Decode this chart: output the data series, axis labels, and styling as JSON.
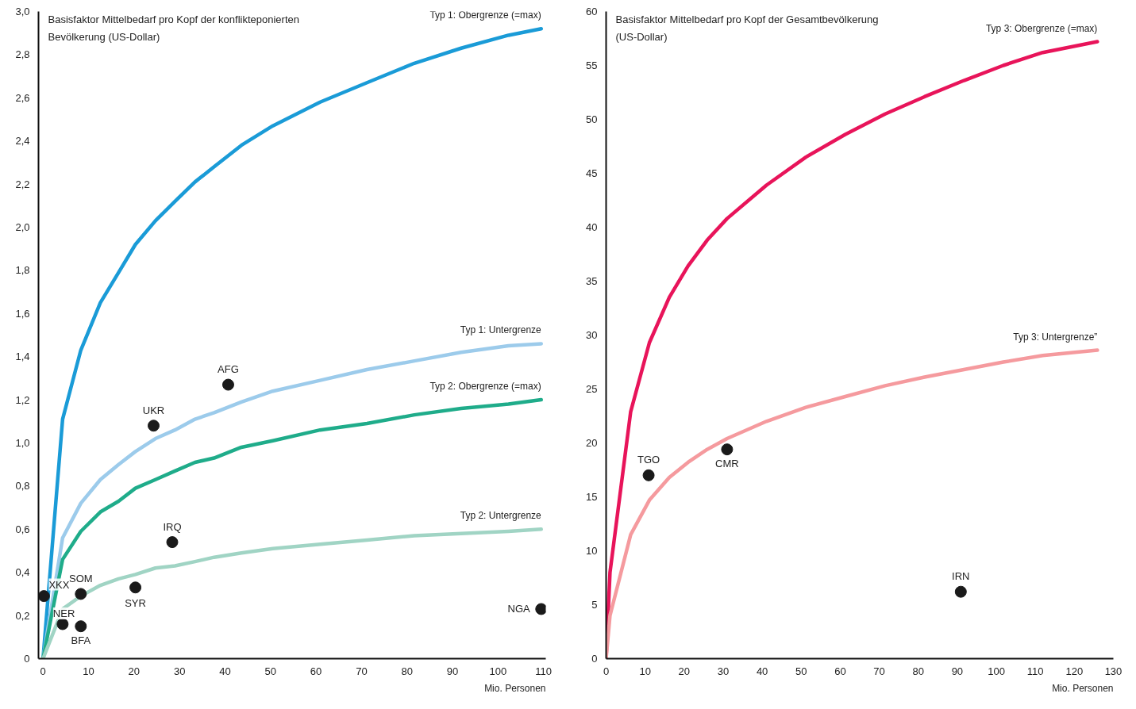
{
  "chart_data": [
    {
      "type": "line",
      "ylabel": "Basisfaktor Mittelbedarf pro Kopf der konflikteponierten Bevölkerung (US-Dollar)",
      "xlabel": "Mio. Personen",
      "xlim": [
        -1,
        110.5
      ],
      "ylim": [
        0,
        3.0
      ],
      "xticks": [
        0,
        10,
        20,
        30,
        40,
        50,
        60,
        70,
        80,
        90,
        100,
        110
      ],
      "yticks": [
        0,
        {
          "value": 0.2,
          "label": "0,2"
        },
        {
          "value": 0.4,
          "label": "0,4"
        },
        {
          "value": 0.6,
          "label": "0,6"
        },
        {
          "value": 0.8,
          "label": "0,8"
        },
        {
          "value": 1.0,
          "label": "1,0"
        },
        {
          "value": 1.2,
          "label": "1,2"
        },
        {
          "value": 1.4,
          "label": "1,4"
        },
        {
          "value": 1.6,
          "label": "1,6"
        },
        {
          "value": 1.8,
          "label": "1,8"
        },
        {
          "value": 2.0,
          "label": "2,0"
        },
        {
          "value": 2.2,
          "label": "2,2"
        },
        {
          "value": 2.4,
          "label": "2,4"
        },
        {
          "value": 2.6,
          "label": "2,6"
        },
        {
          "value": 2.8,
          "label": "2,8"
        },
        {
          "value": 3.0,
          "label": "3,0"
        }
      ],
      "grid": false,
      "series": [
        {
          "name": "Typ 1: Obergrenze (=max)",
          "color": "#1a9bd7",
          "x": [
            0,
            4.3,
            8.3,
            12.6,
            16.6,
            20.3,
            24.7,
            29,
            33.4,
            37.6,
            43.6,
            50.5,
            60.9,
            71.2,
            81.6,
            91.9,
            102.3,
            109.5
          ],
          "values": [
            0,
            1.11,
            1.43,
            1.65,
            1.79,
            1.92,
            2.03,
            2.12,
            2.21,
            2.28,
            2.38,
            2.47,
            2.58,
            2.67,
            2.76,
            2.83,
            2.89,
            2.92
          ]
        },
        {
          "name": "Typ 1: Untergrenze",
          "color": "#9ccbeb",
          "x": [
            0,
            4.3,
            8.3,
            12.6,
            16.6,
            20.3,
            24.7,
            29,
            33.4,
            37.6,
            43.6,
            50.5,
            60.9,
            71.2,
            81.6,
            91.9,
            102.3,
            109.5
          ],
          "values": [
            0,
            0.56,
            0.72,
            0.83,
            0.9,
            0.96,
            1.02,
            1.06,
            1.11,
            1.14,
            1.19,
            1.24,
            1.29,
            1.34,
            1.38,
            1.42,
            1.45,
            1.46
          ]
        },
        {
          "name": "Typ 2: Obergrenze (=max)",
          "color": "#1fac8a",
          "x": [
            0,
            4.3,
            8.3,
            12.6,
            16.6,
            20.3,
            24.7,
            29,
            33.4,
            37.6,
            43.6,
            50.5,
            60.9,
            71.2,
            81.6,
            91.9,
            102.3,
            109.5
          ],
          "values": [
            0,
            0.46,
            0.59,
            0.68,
            0.73,
            0.79,
            0.83,
            0.87,
            0.91,
            0.93,
            0.98,
            1.01,
            1.06,
            1.09,
            1.13,
            1.16,
            1.18,
            1.2
          ]
        },
        {
          "name": "Typ 2: Untergrenze",
          "color": "#a0d4c4",
          "x": [
            0,
            4.3,
            8.3,
            12.6,
            16.6,
            20.3,
            24.7,
            29,
            33.4,
            37.6,
            43.6,
            50.5,
            60.9,
            71.2,
            81.6,
            91.9,
            102.3,
            109.5
          ],
          "values": [
            0,
            0.23,
            0.29,
            0.34,
            0.37,
            0.39,
            0.42,
            0.43,
            0.45,
            0.47,
            0.49,
            0.51,
            0.53,
            0.55,
            0.57,
            0.58,
            0.59,
            0.6
          ]
        },
        {
          "type": "scatter",
          "marker": "circle",
          "name": "XKX",
          "color": "#1a1a1a",
          "x": [
            0.2
          ],
          "values": [
            0.29
          ]
        },
        {
          "type": "scatter",
          "marker": "circle",
          "name": "NER",
          "color": "#1a1a1a",
          "x": [
            4.3
          ],
          "values": [
            0.16
          ]
        },
        {
          "type": "scatter",
          "marker": "circle",
          "name": "BFA",
          "color": "#1a1a1a",
          "x": [
            8.3
          ],
          "values": [
            0.15
          ]
        },
        {
          "type": "scatter",
          "marker": "circle",
          "name": "SOM",
          "color": "#1a1a1a",
          "x": [
            8.3
          ],
          "values": [
            0.3
          ]
        },
        {
          "type": "scatter",
          "marker": "circle",
          "name": "SYR",
          "color": "#1a1a1a",
          "x": [
            20.3
          ],
          "values": [
            0.33
          ]
        },
        {
          "type": "scatter",
          "marker": "circle",
          "name": "IRQ",
          "color": "#1a1a1a",
          "x": [
            28.4
          ],
          "values": [
            0.54
          ]
        },
        {
          "type": "scatter",
          "marker": "circle",
          "name": "UKR",
          "color": "#1a1a1a",
          "x": [
            24.3
          ],
          "values": [
            1.08
          ]
        },
        {
          "type": "scatter",
          "marker": "circle",
          "name": "AFG",
          "color": "#1a1a1a",
          "x": [
            40.7
          ],
          "values": [
            1.27
          ]
        },
        {
          "type": "scatter",
          "marker": "circle",
          "name": "NGA",
          "color": "#1a1a1a",
          "x": [
            109.5
          ],
          "values": [
            0.23
          ]
        }
      ]
    },
    {
      "type": "line",
      "ylabel": "Basisfaktor Mittelbedarf pro Kopf der Gesamtbevölkerung (US-Dollar)",
      "xlabel": "Mio. Personen",
      "xlim": [
        0,
        130
      ],
      "ylim": [
        0,
        60
      ],
      "xticks": [
        0,
        10,
        20,
        30,
        40,
        50,
        60,
        70,
        80,
        90,
        100,
        110,
        120,
        130
      ],
      "yticks": [
        0,
        5,
        10,
        15,
        20,
        25,
        30,
        35,
        40,
        45,
        50,
        55,
        60
      ],
      "grid": false,
      "series": [
        {
          "name": "Typ 3: Obergrenze (=max)",
          "color": "#e8145a",
          "x": [
            0,
            1,
            6.3,
            11.1,
            16.2,
            21,
            25.9,
            31,
            41.1,
            51.2,
            61.3,
            71.5,
            81.6,
            91.7,
            101.8,
            111.9,
            125.9
          ],
          "values": [
            0,
            8,
            22.9,
            29.3,
            33.5,
            36.4,
            38.8,
            40.8,
            43.9,
            46.5,
            48.6,
            50.5,
            52.1,
            53.6,
            55,
            56.2,
            57.2
          ]
        },
        {
          "name": "Typ 3: Untergrenze”",
          "color": "#f59a9e",
          "x": [
            0,
            1,
            6.3,
            11.1,
            16.2,
            21,
            25.9,
            31,
            41.1,
            51.2,
            61.3,
            71.5,
            81.6,
            91.7,
            101.8,
            111.9,
            125.9
          ],
          "values": [
            0,
            4,
            11.5,
            14.7,
            16.8,
            18.2,
            19.4,
            20.4,
            22,
            23.3,
            24.3,
            25.3,
            26.1,
            26.8,
            27.5,
            28.1,
            28.6
          ]
        },
        {
          "type": "scatter",
          "marker": "circle",
          "name": "TGO",
          "color": "#1a1a1a",
          "x": [
            10.9
          ],
          "values": [
            17.0
          ]
        },
        {
          "type": "scatter",
          "marker": "circle",
          "name": "CMR",
          "color": "#1a1a1a",
          "x": [
            31.0
          ],
          "values": [
            19.4
          ]
        },
        {
          "type": "scatter",
          "marker": "circle",
          "name": "IRN",
          "color": "#1a1a1a",
          "x": [
            90.9
          ],
          "values": [
            6.2
          ]
        }
      ]
    }
  ]
}
